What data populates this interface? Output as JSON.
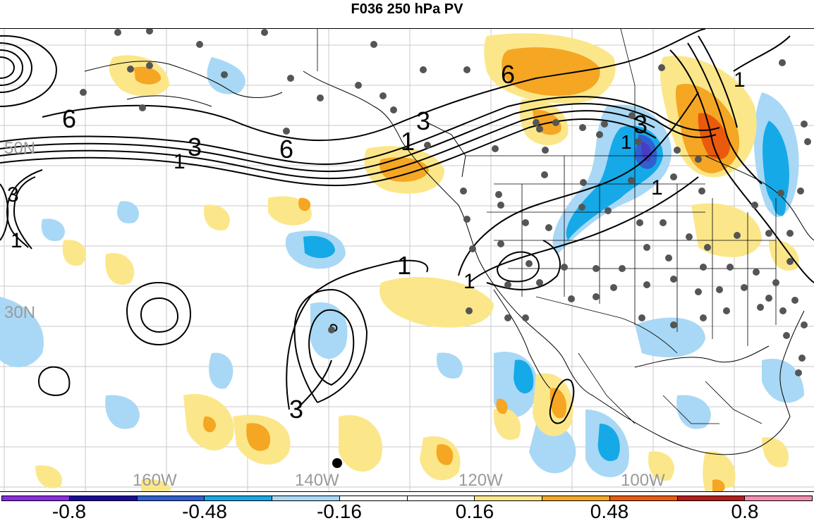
{
  "title": "F036 250 hPa PV",
  "map": {
    "lat_labels": [
      "50N",
      "30N"
    ],
    "lon_labels": [
      "160W",
      "140W",
      "120W",
      "100W"
    ],
    "contour_labels": [
      "6",
      "3",
      "1",
      "6",
      "3",
      "1",
      "6",
      "3",
      "1",
      "1",
      "1",
      "1",
      "1",
      "3"
    ]
  },
  "colorbar": {
    "colors": [
      "#8a2be2",
      "#1a0a9a",
      "#2f5fd1",
      "#15a9e8",
      "#a8d8f5",
      "#ffffff",
      "#ffffff",
      "#fbe78a",
      "#f5a623",
      "#ea5a0c",
      "#b71c1c",
      "#f28db2"
    ],
    "tick_labels": [
      "-0.8",
      "-0.48",
      "-0.16",
      "0.16",
      "0.48",
      "0.8"
    ]
  }
}
